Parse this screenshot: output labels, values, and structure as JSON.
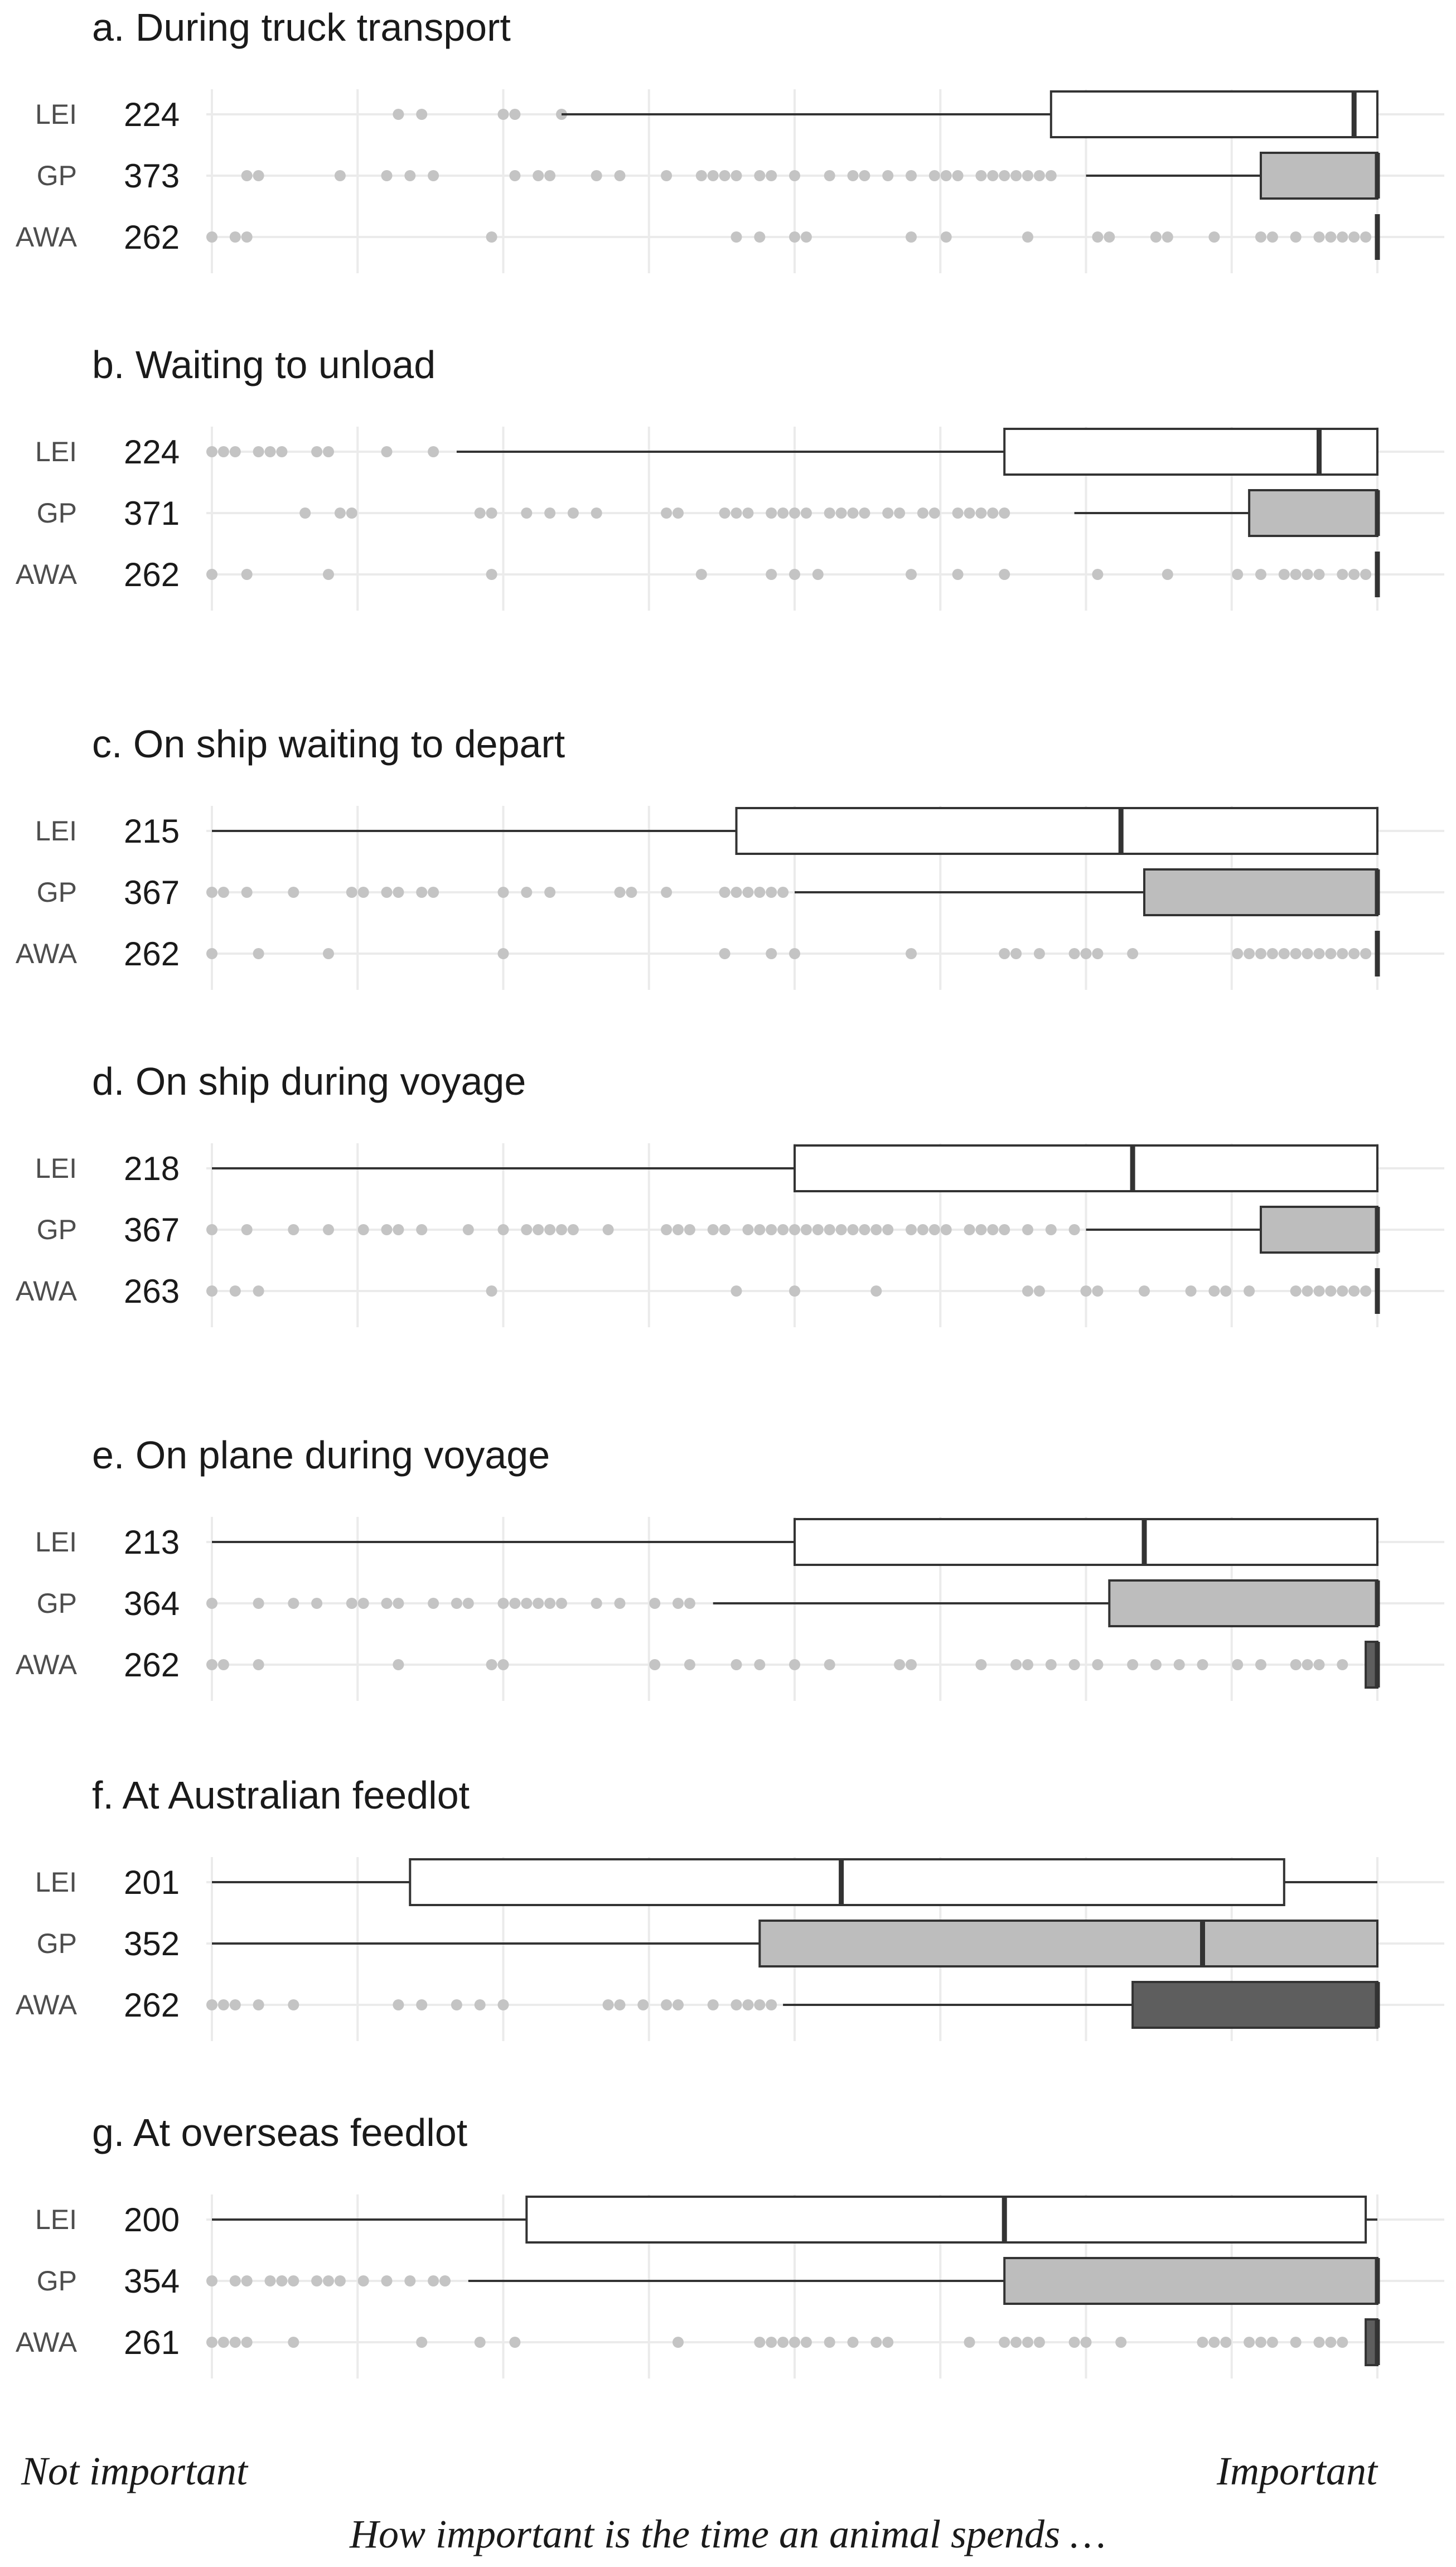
{
  "chart_data": {
    "type": "box",
    "scale_min": 0,
    "scale_max": 100,
    "groups": [
      "LEI",
      "GP",
      "AWA"
    ],
    "group_fills": {
      "LEI": "#ffffff",
      "GP": "#bdbdbd",
      "AWA": "#5e5e5e"
    },
    "x_left_label": "Not important",
    "x_right_label": "Important",
    "x_caption": "How important is the time an animal spends …",
    "panels": [
      {
        "title": "a. During truck transport",
        "rows": [
          {
            "group": "LEI",
            "n": "224",
            "whisker": [
              30,
              100
            ],
            "q1": 72,
            "median": 98,
            "q3": 100,
            "outliers": [
              16,
              18,
              25,
              26,
              30
            ]
          },
          {
            "group": "GP",
            "n": "373",
            "whisker": [
              75,
              100
            ],
            "q1": 90,
            "median": 100,
            "q3": 100,
            "outliers": [
              3,
              4,
              11,
              15,
              17,
              19,
              26,
              28,
              29,
              33,
              35,
              39,
              42,
              43,
              44,
              45,
              47,
              48,
              50,
              53,
              55,
              56,
              58,
              60,
              62,
              63,
              64,
              66,
              67,
              68,
              69,
              70,
              71,
              72
            ]
          },
          {
            "group": "AWA",
            "n": "262",
            "whisker": [
              100,
              100
            ],
            "q1": 100,
            "median": 100,
            "q3": 100,
            "outliers": [
              0,
              2,
              3,
              24,
              45,
              47,
              50,
              51,
              60,
              63,
              70,
              76,
              77,
              81,
              82,
              86,
              90,
              91,
              93,
              95,
              96,
              97,
              98,
              99
            ]
          }
        ]
      },
      {
        "title": "b. Waiting to unload",
        "rows": [
          {
            "group": "LEI",
            "n": "224",
            "whisker": [
              21,
              100
            ],
            "q1": 68,
            "median": 95,
            "q3": 100,
            "outliers": [
              0,
              1,
              2,
              4,
              5,
              6,
              9,
              10,
              15,
              19
            ]
          },
          {
            "group": "GP",
            "n": "371",
            "whisker": [
              74,
              100
            ],
            "q1": 89,
            "median": 100,
            "q3": 100,
            "outliers": [
              8,
              11,
              12,
              23,
              24,
              27,
              29,
              31,
              33,
              39,
              40,
              44,
              45,
              46,
              48,
              49,
              50,
              51,
              53,
              54,
              55,
              56,
              58,
              59,
              61,
              62,
              64,
              65,
              66,
              67,
              68
            ]
          },
          {
            "group": "AWA",
            "n": "262",
            "whisker": [
              100,
              100
            ],
            "q1": 100,
            "median": 100,
            "q3": 100,
            "outliers": [
              0,
              3,
              10,
              24,
              42,
              48,
              50,
              52,
              60,
              64,
              68,
              76,
              82,
              88,
              90,
              92,
              93,
              94,
              95,
              97,
              98,
              99
            ]
          }
        ]
      },
      {
        "title": "c. On ship waiting to depart",
        "rows": [
          {
            "group": "LEI",
            "n": "215",
            "whisker": [
              0,
              100
            ],
            "q1": 45,
            "median": 78,
            "q3": 100
          },
          {
            "group": "GP",
            "n": "367",
            "whisker": [
              50,
              100
            ],
            "q1": 80,
            "median": 100,
            "q3": 100,
            "outliers": [
              0,
              1,
              3,
              7,
              12,
              13,
              15,
              16,
              18,
              19,
              25,
              27,
              29,
              35,
              36,
              39,
              44,
              45,
              46,
              47,
              48,
              49
            ]
          },
          {
            "group": "AWA",
            "n": "262",
            "whisker": [
              100,
              100
            ],
            "q1": 100,
            "median": 100,
            "q3": 100,
            "outliers": [
              0,
              4,
              10,
              25,
              44,
              48,
              50,
              60,
              68,
              69,
              71,
              74,
              75,
              76,
              79,
              88,
              89,
              90,
              91,
              92,
              93,
              94,
              95,
              96,
              97,
              98,
              99
            ]
          }
        ]
      },
      {
        "title": "d. On ship during voyage",
        "rows": [
          {
            "group": "LEI",
            "n": "218",
            "whisker": [
              0,
              100
            ],
            "q1": 50,
            "median": 79,
            "q3": 100
          },
          {
            "group": "GP",
            "n": "367",
            "whisker": [
              75,
              100
            ],
            "q1": 90,
            "median": 100,
            "q3": 100,
            "outliers": [
              0,
              3,
              7,
              10,
              13,
              15,
              16,
              18,
              22,
              25,
              27,
              28,
              29,
              30,
              31,
              34,
              39,
              40,
              41,
              43,
              44,
              46,
              47,
              48,
              49,
              50,
              51,
              52,
              53,
              54,
              55,
              56,
              57,
              58,
              60,
              61,
              62,
              63,
              65,
              66,
              67,
              68,
              70,
              72,
              74
            ]
          },
          {
            "group": "AWA",
            "n": "263",
            "whisker": [
              100,
              100
            ],
            "q1": 100,
            "median": 100,
            "q3": 100,
            "outliers": [
              0,
              2,
              4,
              24,
              45,
              50,
              57,
              70,
              71,
              75,
              76,
              80,
              84,
              86,
              87,
              89,
              93,
              94,
              95,
              96,
              97,
              98,
              99
            ]
          }
        ]
      },
      {
        "title": "e. On plane during voyage",
        "rows": [
          {
            "group": "LEI",
            "n": "213",
            "whisker": [
              0,
              100
            ],
            "q1": 50,
            "median": 80,
            "q3": 100
          },
          {
            "group": "GP",
            "n": "364",
            "whisker": [
              43,
              100
            ],
            "q1": 77,
            "median": 100,
            "q3": 100,
            "outliers": [
              0,
              4,
              7,
              9,
              12,
              13,
              15,
              16,
              19,
              21,
              22,
              25,
              26,
              27,
              28,
              29,
              30,
              33,
              35,
              38,
              40,
              41
            ]
          },
          {
            "group": "AWA",
            "n": "262",
            "whisker": [
              99,
              100
            ],
            "q1": 99,
            "median": 100,
            "q3": 100,
            "outliers": [
              0,
              1,
              4,
              16,
              24,
              25,
              38,
              41,
              45,
              47,
              50,
              53,
              59,
              60,
              66,
              69,
              70,
              72,
              74,
              76,
              79,
              81,
              83,
              85,
              88,
              90,
              93,
              94,
              95,
              97
            ]
          }
        ]
      },
      {
        "title": "f. At Australian feedlot",
        "rows": [
          {
            "group": "LEI",
            "n": "201",
            "whisker": [
              0,
              100
            ],
            "q1": 17,
            "median": 54,
            "q3": 92
          },
          {
            "group": "GP",
            "n": "352",
            "whisker": [
              0,
              100
            ],
            "q1": 47,
            "median": 85,
            "q3": 100
          },
          {
            "group": "AWA",
            "n": "262",
            "whisker": [
              49,
              100
            ],
            "q1": 79,
            "median": 100,
            "q3": 100,
            "outliers": [
              0,
              1,
              2,
              4,
              7,
              16,
              18,
              21,
              23,
              25,
              34,
              35,
              37,
              39,
              40,
              43,
              45,
              46,
              47,
              48
            ]
          }
        ]
      },
      {
        "title": "g. At overseas feedlot",
        "rows": [
          {
            "group": "LEI",
            "n": "200",
            "whisker": [
              0,
              100
            ],
            "q1": 27,
            "median": 68,
            "q3": 99
          },
          {
            "group": "GP",
            "n": "354",
            "whisker": [
              22,
              100
            ],
            "q1": 68,
            "median": 100,
            "q3": 100,
            "outliers": [
              0,
              2,
              3,
              5,
              6,
              7,
              9,
              10,
              11,
              13,
              15,
              17,
              19,
              20
            ]
          },
          {
            "group": "AWA",
            "n": "261",
            "whisker": [
              99,
              100
            ],
            "q1": 99,
            "median": 100,
            "q3": 100,
            "outliers": [
              0,
              1,
              2,
              3,
              7,
              18,
              23,
              26,
              40,
              47,
              48,
              49,
              50,
              51,
              53,
              55,
              57,
              58,
              65,
              68,
              69,
              70,
              71,
              74,
              75,
              78,
              85,
              86,
              87,
              89,
              90,
              91,
              93,
              95,
              96,
              97
            ]
          }
        ]
      }
    ]
  }
}
